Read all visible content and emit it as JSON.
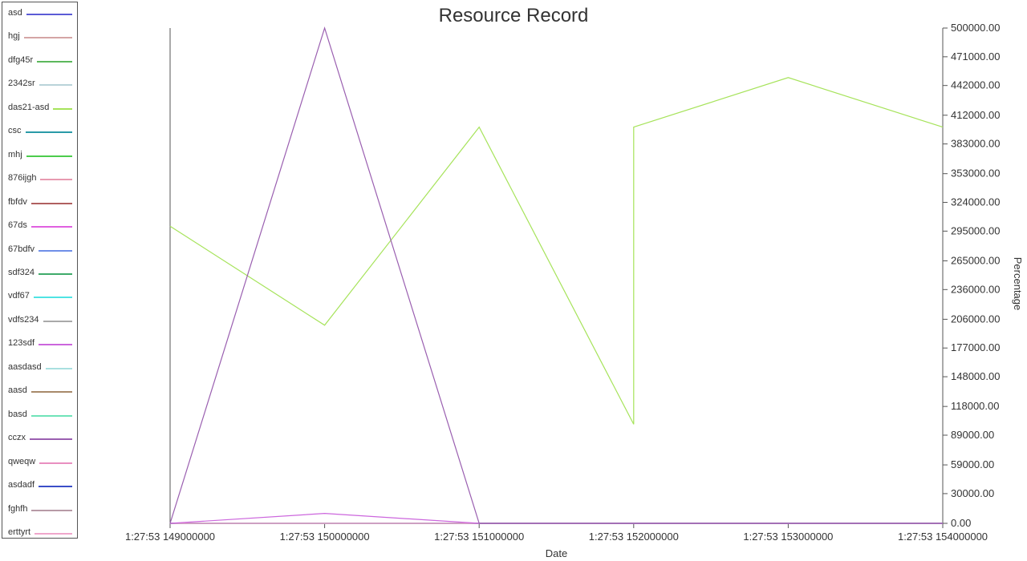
{
  "chart_data": {
    "type": "line",
    "title": "Resource Record",
    "xlabel": "Date",
    "ylabel": "Percentage",
    "x": [
      "1:27:53 149000000",
      "1:27:53 150000000",
      "1:27:53 151000000",
      "1:27:53 152000000",
      "1:27:53 153000000",
      "1:27:53 154000000"
    ],
    "ylim": [
      0,
      500000
    ],
    "yticks": [
      "0.00",
      "30000.00",
      "59000.00",
      "89000.00",
      "118000.00",
      "148000.00",
      "177000.00",
      "206000.00",
      "236000.00",
      "265000.00",
      "295000.00",
      "324000.00",
      "353000.00",
      "383000.00",
      "412000.00",
      "442000.00",
      "471000.00",
      "500000.00"
    ],
    "legend_position": "left",
    "grid": false,
    "series": [
      {
        "name": "asd",
        "color": "#5b5bd6",
        "values": [
          0,
          0,
          0,
          0,
          0,
          0
        ]
      },
      {
        "name": "hgj",
        "color": "#d4a5a5",
        "values": [
          0,
          0,
          0,
          0,
          0,
          0
        ]
      },
      {
        "name": "dfg45r",
        "color": "#5cb85c",
        "values": [
          0,
          0,
          0,
          0,
          0,
          0
        ]
      },
      {
        "name": "2342sr",
        "color": "#b9d3d9",
        "values": [
          0,
          0,
          0,
          0,
          0,
          0
        ]
      },
      {
        "name": "das21-asd",
        "color": "#a6e35a",
        "values": [
          300000,
          200000,
          400000,
          100000,
          450000,
          400000
        ]
      },
      {
        "name": "csc",
        "color": "#2a9aa8",
        "values": [
          0,
          0,
          0,
          0,
          0,
          0
        ]
      },
      {
        "name": "mhj",
        "color": "#4ccc4c",
        "values": [
          0,
          0,
          0,
          0,
          0,
          0
        ]
      },
      {
        "name": "876ijgh",
        "color": "#e79ab0",
        "values": [
          0,
          0,
          0,
          0,
          0,
          0
        ]
      },
      {
        "name": "fbfdv",
        "color": "#b06060",
        "values": [
          0,
          0,
          0,
          0,
          0,
          0
        ]
      },
      {
        "name": "67ds",
        "color": "#e060e0",
        "values": [
          0,
          0,
          0,
          0,
          0,
          0
        ]
      },
      {
        "name": "67bdfv",
        "color": "#6f8fe8",
        "values": [
          0,
          0,
          0,
          0,
          0,
          0
        ]
      },
      {
        "name": "sdf324",
        "color": "#3faa6a",
        "values": [
          0,
          0,
          0,
          0,
          0,
          0
        ]
      },
      {
        "name": "vdf67",
        "color": "#4fe3e3",
        "values": [
          0,
          0,
          0,
          0,
          0,
          0
        ]
      },
      {
        "name": "vdfs234",
        "color": "#aaaaaa",
        "values": [
          0,
          0,
          0,
          0,
          0,
          0
        ]
      },
      {
        "name": "123sdf",
        "color": "#cc66dd",
        "values": [
          0,
          10000,
          0,
          0,
          0,
          0
        ]
      },
      {
        "name": "aasdasd",
        "color": "#a9e0e0",
        "values": [
          0,
          0,
          0,
          0,
          0,
          0
        ]
      },
      {
        "name": "aasd",
        "color": "#a8896a",
        "values": [
          0,
          0,
          0,
          0,
          0,
          0
        ]
      },
      {
        "name": "basd",
        "color": "#6fe3b8",
        "values": [
          0,
          0,
          0,
          0,
          0,
          0
        ]
      },
      {
        "name": "cczx",
        "color": "#9a5fb0",
        "values": [
          0,
          500000,
          0,
          0,
          0,
          0
        ]
      },
      {
        "name": "qweqw",
        "color": "#e98fc0",
        "values": [
          0,
          0,
          0,
          0,
          0,
          0
        ]
      },
      {
        "name": "asdadf",
        "color": "#3b4ec8",
        "values": [
          0,
          0,
          0,
          0,
          0,
          0
        ]
      },
      {
        "name": "fghfh",
        "color": "#b79aa6",
        "values": [
          0,
          0,
          0,
          0,
          0,
          0
        ]
      },
      {
        "name": "erttyrt",
        "color": "#f0a6cc",
        "values": [
          0,
          0,
          0,
          0,
          0,
          0
        ]
      }
    ]
  }
}
